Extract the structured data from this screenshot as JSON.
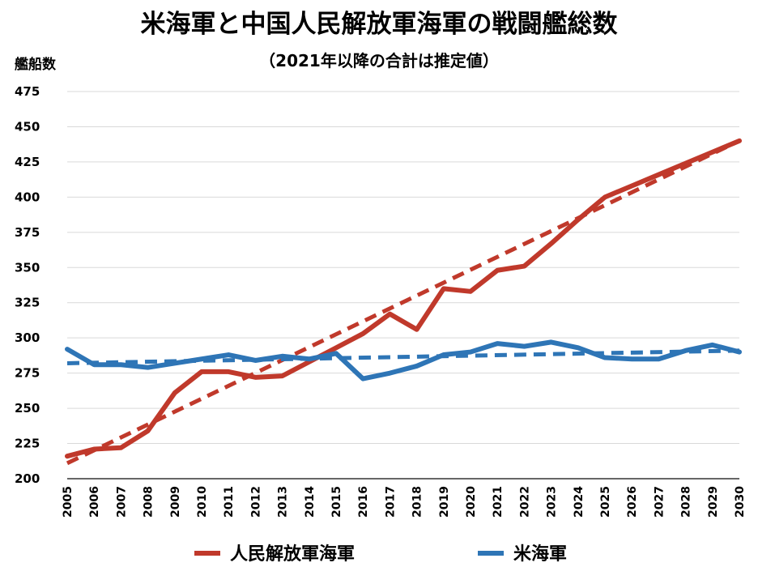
{
  "chart_data": {
    "type": "line",
    "title": "米海軍と中国人民解放軍海軍の戦闘艦総数",
    "subtitle": "（2021年以降の合計は推定値）",
    "xlabel": "",
    "ylabel": "艦船数",
    "ylim": [
      200,
      475
    ],
    "yticks": [
      200,
      225,
      250,
      275,
      300,
      325,
      350,
      375,
      400,
      425,
      450,
      475
    ],
    "grid": true,
    "legend_position": "bottom",
    "x": [
      "2005",
      "2006",
      "2007",
      "2008",
      "2009",
      "2010",
      "2011",
      "2012",
      "2013",
      "2014",
      "2015",
      "2016",
      "2017",
      "2018",
      "2019",
      "2020",
      "2021",
      "2022",
      "2023",
      "2024",
      "2025",
      "2026",
      "2027",
      "2028",
      "2029",
      "2030"
    ],
    "series": [
      {
        "name": "人民解放軍海軍",
        "color": "#c0392b",
        "values": [
          216,
          221,
          222,
          234,
          261,
          276,
          276,
          272,
          273,
          283,
          293,
          303,
          317,
          306,
          335,
          333,
          348,
          351,
          367,
          384,
          400,
          408,
          416,
          424,
          432,
          440
        ],
        "trend": [
          211,
          440
        ]
      },
      {
        "name": "米海軍",
        "color": "#2e75b6",
        "values": [
          292,
          281,
          281,
          279,
          282,
          285,
          288,
          284,
          287,
          285,
          289,
          271,
          275,
          280,
          288,
          290,
          296,
          294,
          297,
          293,
          286,
          285,
          285,
          291,
          295,
          290
        ],
        "trend": [
          282,
          291
        ]
      }
    ]
  }
}
